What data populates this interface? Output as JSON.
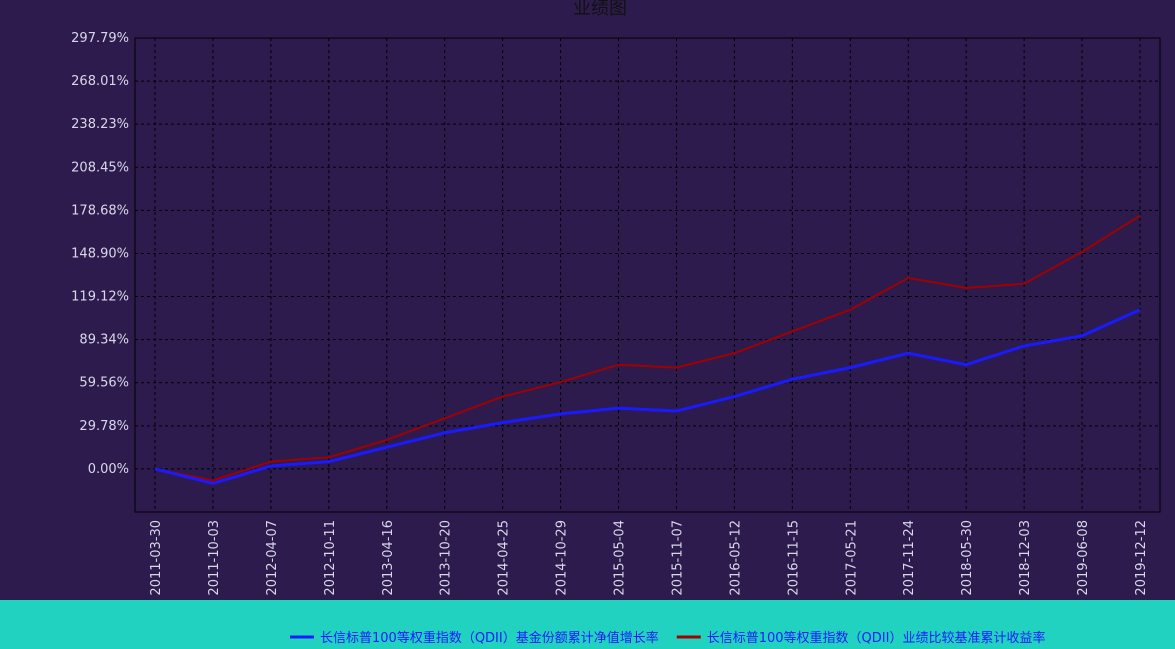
{
  "chart_data": {
    "type": "line",
    "title": "业绩图",
    "x": [
      "2011-03-30",
      "2011-10-03",
      "2012-04-07",
      "2012-10-11",
      "2013-04-16",
      "2013-10-20",
      "2014-04-25",
      "2014-10-29",
      "2015-05-04",
      "2015-11-07",
      "2016-05-12",
      "2016-11-15",
      "2017-05-21",
      "2017-11-24",
      "2018-05-30",
      "2018-12-03",
      "2019-06-08",
      "2019-12-12"
    ],
    "series": [
      {
        "name": "长信标普100等权重指数（QDII）基金份额累计净值增长率",
        "color": "#1a1aff",
        "values": [
          0,
          -10,
          2,
          5,
          15,
          25,
          32,
          38,
          42,
          40,
          50,
          62,
          70,
          80,
          72,
          85,
          92,
          110
        ]
      },
      {
        "name": "长信标普100等权重指数（QDII）业绩比较基准累计收益率",
        "color": "#a00000",
        "values": [
          0,
          -8,
          5,
          8,
          20,
          35,
          50,
          60,
          72,
          70,
          80,
          95,
          110,
          132,
          125,
          128,
          150,
          175
        ]
      }
    ],
    "ylim": [
      -29.78,
      297.79
    ],
    "yticks": [
      {
        "value": 0,
        "label": "0.00%"
      },
      {
        "value": 29.78,
        "label": "29.78%"
      },
      {
        "value": 59.56,
        "label": "59.56%"
      },
      {
        "value": 89.34,
        "label": "89.34%"
      },
      {
        "value": 119.12,
        "label": "119.12%"
      },
      {
        "value": 148.9,
        "label": "148.90%"
      },
      {
        "value": 178.68,
        "label": "178.68%"
      },
      {
        "value": 208.45,
        "label": "208.45%"
      },
      {
        "value": 238.23,
        "label": "238.23%"
      },
      {
        "value": 268.01,
        "label": "268.01%"
      },
      {
        "value": 297.79,
        "label": "297.79%"
      }
    ],
    "grid": true
  }
}
